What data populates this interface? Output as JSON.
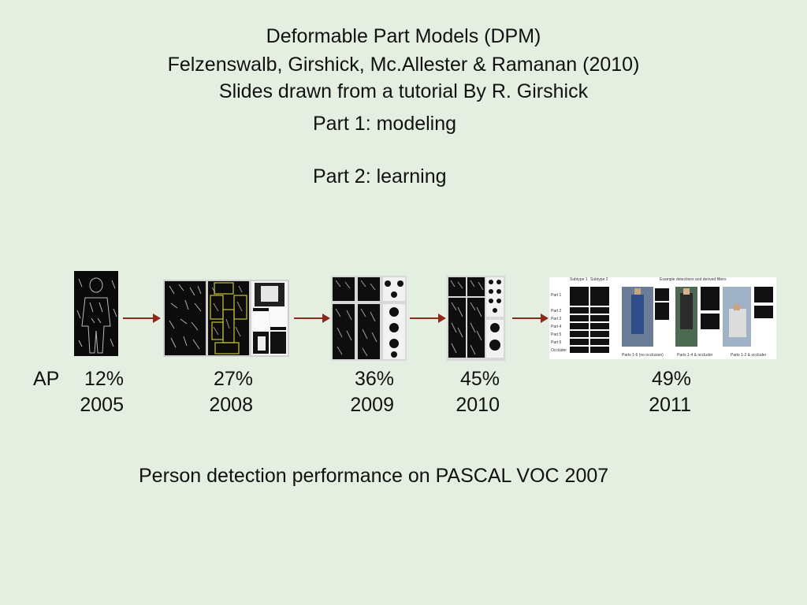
{
  "slide": {
    "title": "Deformable Part Models (DPM)",
    "authors": "Felzenswalb, Girshick, Mc.Allester & Ramanan (2010)",
    "credit": "Slides drawn from a tutorial By R. Girshick",
    "part1": "Part 1: modeling",
    "part2": "Part 2: learning",
    "footer": "Person detection performance on PASCAL VOC 2007"
  },
  "timeline": {
    "ap_label": "AP",
    "entries": [
      {
        "ap": "12%",
        "year": "2005"
      },
      {
        "ap": "27%",
        "year": "2008"
      },
      {
        "ap": "36%",
        "year": "2009"
      },
      {
        "ap": "45%",
        "year": "2010"
      },
      {
        "ap": "49%",
        "year": "2011"
      }
    ]
  },
  "figure_2011": {
    "subtype1": "Subtype 1",
    "subtype2": "Subtype 2",
    "header": "Example detections and derived filters",
    "rows": [
      "Part 1",
      "Part 2",
      "Part 3",
      "Part 4",
      "Part 5",
      "Part 6",
      "Occluder"
    ],
    "captions": [
      "Parts 1-6 (no occlusion)",
      "Parts 1-4 & occluder",
      "Parts 1-2 & occluder"
    ]
  },
  "colors": {
    "background": "#e4efe2",
    "arrow": "#8b2a1a",
    "part_box": "#c8c23a"
  }
}
